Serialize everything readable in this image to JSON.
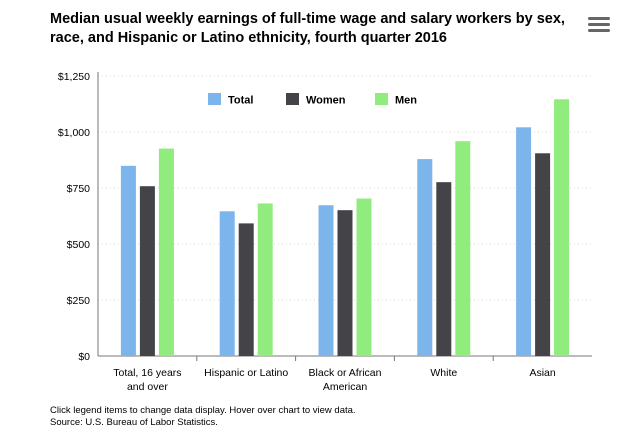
{
  "header": {
    "title_line1": "Median usual weekly earnings of full-time wage and salary workers by sex,",
    "title_line2": "race, and Hispanic or Latino ethnicity, fourth quarter 2016",
    "menu_icon": "hamburger-menu-icon"
  },
  "footer": {
    "note": "Click legend items to change data display. Hover over chart to view data.",
    "source": "Source: U.S. Bureau of Labor Statistics."
  },
  "chart_data": {
    "type": "bar",
    "title": "Median usual weekly earnings of full-time wage and salary workers by sex, race, and Hispanic or Latino ethnicity, fourth quarter 2016",
    "categories": [
      [
        "Total, 16 years",
        "and over"
      ],
      [
        "Hispanic or Latino"
      ],
      [
        "Black or African",
        "American"
      ],
      [
        "White"
      ],
      [
        "Asian"
      ]
    ],
    "series": [
      {
        "name": "Total",
        "color": "#7cb5ec",
        "values": [
          849,
          646,
          673,
          879,
          1021
        ]
      },
      {
        "name": "Women",
        "color": "#434348",
        "values": [
          758,
          592,
          651,
          776,
          905
        ]
      },
      {
        "name": "Men",
        "color": "#90ed7d",
        "values": [
          926,
          681,
          703,
          959,
          1146
        ]
      }
    ],
    "yticks": [
      "$0",
      "$250",
      "$500",
      "$750",
      "$1,000",
      "$1,250"
    ],
    "ylim": [
      0,
      1250
    ],
    "grid": true,
    "legend_position": "top"
  }
}
